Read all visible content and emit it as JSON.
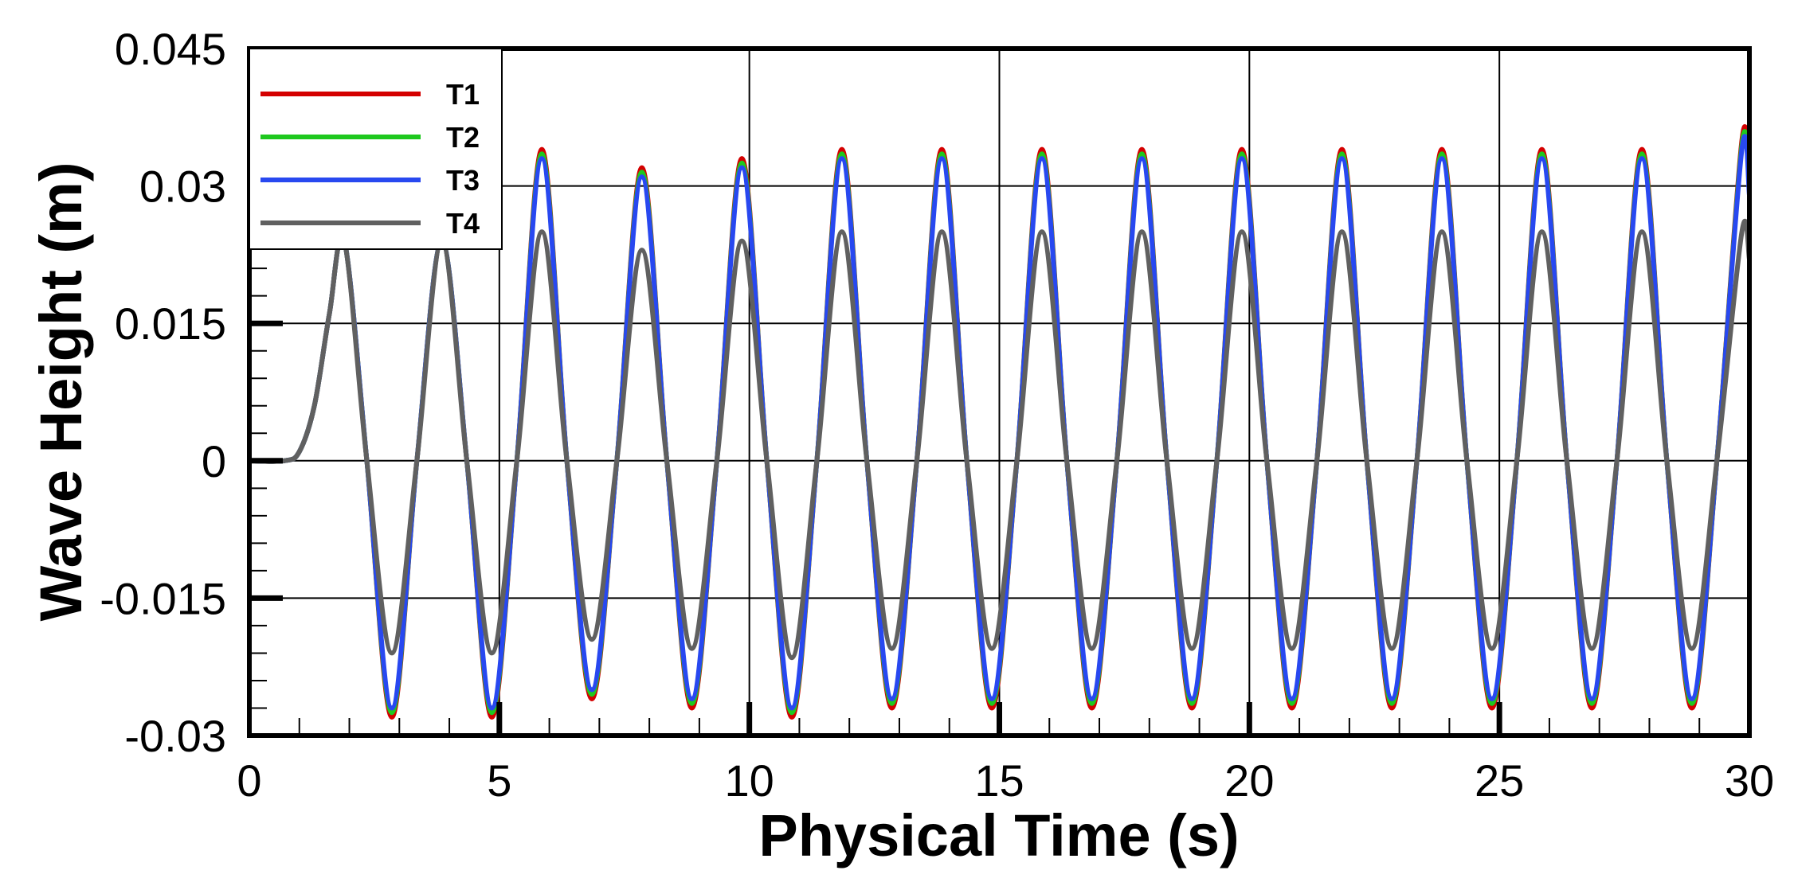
{
  "chart_data": {
    "type": "line",
    "xlabel": "Physical Time (s)",
    "ylabel": "Wave Height (m)",
    "xlim": [
      0,
      30
    ],
    "ylim": [
      -0.03,
      0.045
    ],
    "xticks": [
      "0",
      "5",
      "10",
      "15",
      "20",
      "25",
      "30"
    ],
    "yticks": [
      "0.045",
      "0.03",
      "0.015",
      "0",
      "-0.015",
      "-0.03"
    ],
    "grid": true,
    "legend_position": "top-left",
    "series": [
      {
        "name": "T1",
        "color": "#d40000",
        "x": [
          0,
          0.7,
          1.0,
          1.3,
          1.6,
          1.9,
          2.35,
          2.85,
          3.35,
          3.85,
          4.35,
          4.85,
          5.35,
          5.85,
          6.35,
          6.85,
          7.35,
          7.85,
          8.35,
          8.85,
          9.35,
          9.85,
          10.35,
          10.85,
          11.35,
          11.85,
          12.35,
          12.85,
          13.35,
          13.85,
          14.35,
          14.85,
          15.35,
          15.85,
          16.35,
          16.85,
          17.35,
          17.85,
          18.35,
          18.85,
          19.35,
          19.85,
          20.35,
          20.85,
          21.35,
          21.85,
          22.35,
          22.85,
          23.35,
          23.85,
          24.35,
          24.85,
          25.35,
          25.85,
          26.35,
          26.85,
          27.35,
          27.85,
          28.35,
          28.85,
          29.35,
          29.85,
          30
        ],
        "y": [
          0,
          0,
          0.001,
          0.006,
          0.016,
          0.024,
          0,
          -0.028,
          0,
          0.024,
          0,
          -0.028,
          0,
          0.034,
          0,
          -0.026,
          0,
          0.032,
          0,
          -0.027,
          0,
          0.033,
          0,
          -0.028,
          0,
          0.034,
          0,
          -0.027,
          0,
          0.034,
          0,
          -0.027,
          0,
          0.034,
          0,
          -0.027,
          0,
          0.034,
          0,
          -0.027,
          0,
          0.034,
          0,
          -0.027,
          0,
          0.034,
          0,
          -0.027,
          0,
          0.034,
          0,
          -0.027,
          0,
          0.034,
          0,
          -0.027,
          0,
          0.034,
          0,
          -0.027,
          0,
          0.035,
          0.03
        ]
      },
      {
        "name": "T2",
        "color": "#1ec81e",
        "x": [
          0,
          0.7,
          1.0,
          1.3,
          1.6,
          1.9,
          2.35,
          2.85,
          3.35,
          3.85,
          4.35,
          4.85,
          5.35,
          5.85,
          6.35,
          6.85,
          7.35,
          7.85,
          8.35,
          8.85,
          9.35,
          9.85,
          10.35,
          10.85,
          11.35,
          11.85,
          12.35,
          12.85,
          13.35,
          13.85,
          14.35,
          14.85,
          15.35,
          15.85,
          16.35,
          16.85,
          17.35,
          17.85,
          18.35,
          18.85,
          19.35,
          19.85,
          20.35,
          20.85,
          21.35,
          21.85,
          22.35,
          22.85,
          23.35,
          23.85,
          24.35,
          24.85,
          25.35,
          25.85,
          26.35,
          26.85,
          27.35,
          27.85,
          28.35,
          28.85,
          29.35,
          29.85,
          30
        ],
        "y": [
          0,
          0,
          0.001,
          0.006,
          0.016,
          0.024,
          0,
          -0.0275,
          0,
          0.024,
          0,
          -0.0275,
          0,
          0.0335,
          0,
          -0.0255,
          0,
          0.0315,
          0,
          -0.0265,
          0,
          0.0325,
          0,
          -0.0275,
          0,
          0.0335,
          0,
          -0.0265,
          0,
          0.0335,
          0,
          -0.0265,
          0,
          0.0335,
          0,
          -0.0265,
          0,
          0.0335,
          0,
          -0.0265,
          0,
          0.0335,
          0,
          -0.0265,
          0,
          0.0335,
          0,
          -0.0265,
          0,
          0.0335,
          0,
          -0.0265,
          0,
          0.0335,
          0,
          -0.0265,
          0,
          0.0335,
          0,
          -0.0265,
          0,
          0.0345,
          0.0295
        ]
      },
      {
        "name": "T3",
        "color": "#2848f0",
        "x": [
          0,
          0.7,
          1.0,
          1.3,
          1.6,
          1.9,
          2.35,
          2.85,
          3.35,
          3.85,
          4.35,
          4.85,
          5.35,
          5.85,
          6.35,
          6.85,
          7.35,
          7.85,
          8.35,
          8.85,
          9.35,
          9.85,
          10.35,
          10.85,
          11.35,
          11.85,
          12.35,
          12.85,
          13.35,
          13.85,
          14.35,
          14.85,
          15.35,
          15.85,
          16.35,
          16.85,
          17.35,
          17.85,
          18.35,
          18.85,
          19.35,
          19.85,
          20.35,
          20.85,
          21.35,
          21.85,
          22.35,
          22.85,
          23.35,
          23.85,
          24.35,
          24.85,
          25.35,
          25.85,
          26.35,
          26.85,
          27.35,
          27.85,
          28.35,
          28.85,
          29.35,
          29.85,
          30
        ],
        "y": [
          0,
          0,
          0.001,
          0.006,
          0.016,
          0.024,
          0,
          -0.027,
          0,
          0.024,
          0,
          -0.027,
          0,
          0.033,
          0,
          -0.025,
          0,
          0.031,
          0,
          -0.026,
          0,
          0.032,
          0,
          -0.027,
          0,
          0.033,
          0,
          -0.026,
          0,
          0.033,
          0,
          -0.026,
          0,
          0.033,
          0,
          -0.026,
          0,
          0.033,
          0,
          -0.026,
          0,
          0.033,
          0,
          -0.026,
          0,
          0.033,
          0,
          -0.026,
          0,
          0.033,
          0,
          -0.026,
          0,
          0.033,
          0,
          -0.026,
          0,
          0.033,
          0,
          -0.026,
          0,
          0.034,
          0.029
        ]
      },
      {
        "name": "T4",
        "color": "#606060",
        "x": [
          0,
          0.7,
          1.0,
          1.3,
          1.6,
          1.9,
          2.35,
          2.85,
          3.35,
          3.85,
          4.35,
          4.85,
          5.35,
          5.85,
          6.35,
          6.85,
          7.35,
          7.85,
          8.35,
          8.85,
          9.35,
          9.85,
          10.35,
          10.85,
          11.35,
          11.85,
          12.35,
          12.85,
          13.35,
          13.85,
          14.35,
          14.85,
          15.35,
          15.85,
          16.35,
          16.85,
          17.35,
          17.85,
          18.35,
          18.85,
          19.35,
          19.85,
          20.35,
          20.85,
          21.35,
          21.85,
          22.35,
          22.85,
          23.35,
          23.85,
          24.35,
          24.85,
          25.35,
          25.85,
          26.35,
          26.85,
          27.35,
          27.85,
          28.35,
          28.85,
          29.35,
          29.85,
          30
        ],
        "y": [
          0,
          0,
          0.001,
          0.006,
          0.016,
          0.024,
          0,
          -0.021,
          0,
          0.024,
          0,
          -0.021,
          0,
          0.025,
          0,
          -0.0195,
          0,
          0.023,
          0,
          -0.0205,
          0,
          0.024,
          0,
          -0.0215,
          0,
          0.025,
          0,
          -0.0205,
          0,
          0.025,
          0,
          -0.0205,
          0,
          0.025,
          0,
          -0.0205,
          0,
          0.025,
          0,
          -0.0205,
          0,
          0.025,
          0,
          -0.0205,
          0,
          0.025,
          0,
          -0.0205,
          0,
          0.025,
          0,
          -0.0205,
          0,
          0.025,
          0,
          -0.0205,
          0,
          0.025,
          0,
          -0.0205,
          0,
          0.025,
          0.022
        ]
      }
    ]
  }
}
